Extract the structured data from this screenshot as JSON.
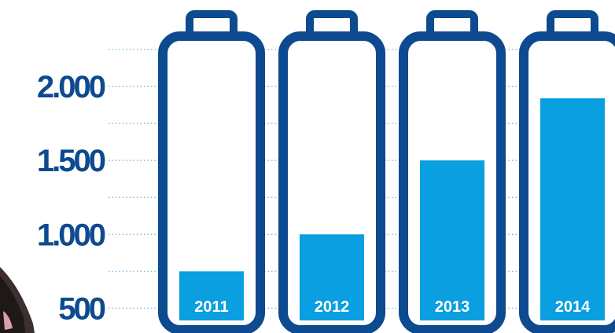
{
  "chart_data": {
    "type": "bar",
    "style": "battery",
    "categories": [
      "2011",
      "2012",
      "2013",
      "2014"
    ],
    "values": [
      750,
      1000,
      1500,
      1920
    ],
    "yticks": [
      {
        "value": 500,
        "label": "500"
      },
      {
        "value": 1000,
        "label": "1.000"
      },
      {
        "value": 1500,
        "label": "1.500"
      },
      {
        "value": 2000,
        "label": "2.000"
      }
    ],
    "ylim": [
      375,
      2500
    ],
    "grid": "dotted",
    "colors": {
      "outline": "#0d4a8f",
      "fill": "#0a9fe0",
      "tick_text": "#0d4a8f",
      "bar_label": "#ffffff",
      "grid": "#7ab8e6"
    }
  }
}
